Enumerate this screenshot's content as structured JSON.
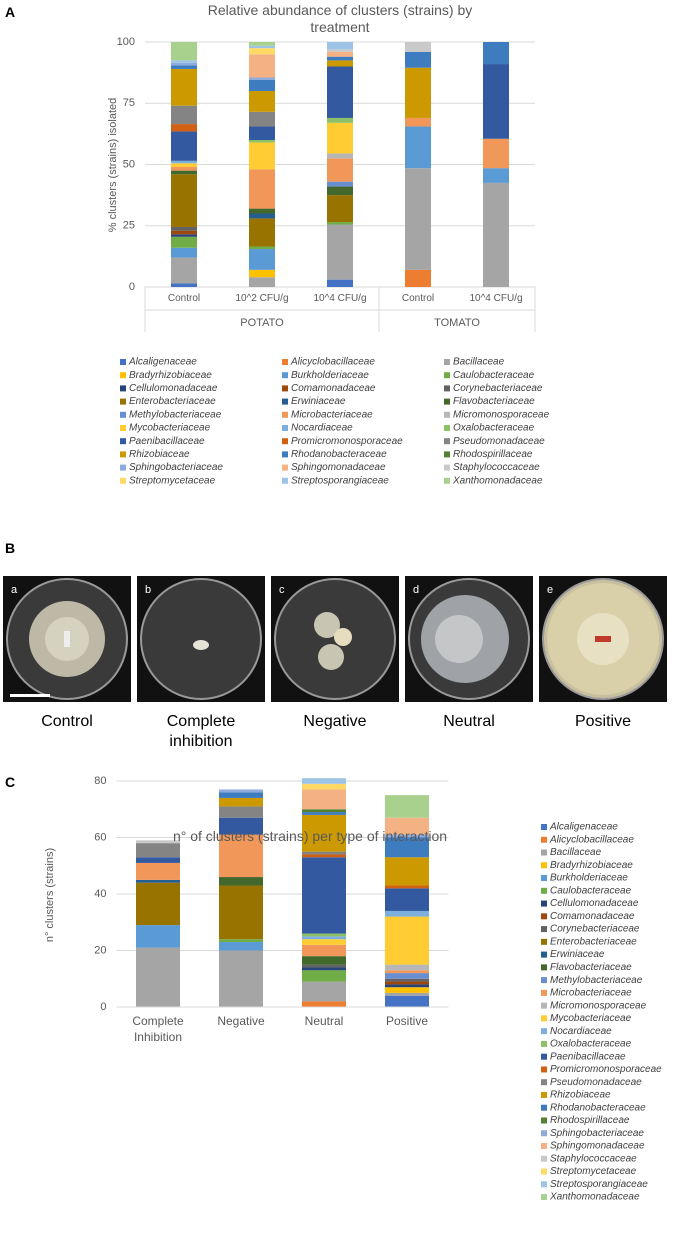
{
  "panel_labels": [
    "A",
    "B",
    "C"
  ],
  "chart_data": [
    {
      "type": "bar",
      "stacked": true,
      "grid": true,
      "legend": "bottom",
      "title": "Relative abundance of clusters (strains) by treatment",
      "y_label": "% clusters (strains) isolated",
      "groups": [
        {
          "name": "POTATO",
          "categories": [
            "Control",
            "10^2 CFU/g",
            "10^4 CFU/g"
          ]
        },
        {
          "name": "TOMATO",
          "categories": [
            "Control",
            "10^4 CFU/g"
          ]
        }
      ],
      "ylim": [
        0,
        100
      ],
      "yticks": [
        0,
        25,
        50,
        75,
        100
      ],
      "series": [
        {
          "name": "Alcaligenaceae",
          "color": "#4472c4",
          "values": [
            1.5,
            0,
            3,
            0,
            0
          ]
        },
        {
          "name": "Alicyclobacillaceae",
          "color": "#ed7d31",
          "values": [
            0,
            0,
            0,
            7,
            0
          ]
        },
        {
          "name": "Bacillaceae",
          "color": "#a5a5a5",
          "values": [
            10.5,
            4,
            22.5,
            41.5,
            42.5
          ]
        },
        {
          "name": "Bradyrhizobiaceae",
          "color": "#ffc000",
          "values": [
            0,
            3,
            0,
            0,
            0
          ]
        },
        {
          "name": "Burkholderiaceae",
          "color": "#5b9bd5",
          "values": [
            4,
            8.5,
            0,
            17,
            6
          ]
        },
        {
          "name": "Caulobacteraceae",
          "color": "#70ad47",
          "values": [
            4.5,
            1,
            1,
            0,
            0
          ]
        },
        {
          "name": "Cellulomonadaceae",
          "color": "#264478",
          "values": [
            1,
            0,
            0,
            0,
            0
          ]
        },
        {
          "name": "Comamonadaceae",
          "color": "#9e480e",
          "values": [
            1.5,
            0,
            0,
            0,
            0
          ]
        },
        {
          "name": "Corynebacteriaceae",
          "color": "#636363",
          "values": [
            1.5,
            0,
            0,
            0,
            0
          ]
        },
        {
          "name": "Enterobacteriaceae",
          "color": "#997300",
          "values": [
            21.5,
            11.5,
            11,
            0,
            0
          ]
        },
        {
          "name": "Erwiniaceae",
          "color": "#255e91",
          "values": [
            0,
            2,
            0,
            0,
            0
          ]
        },
        {
          "name": "Flavobacteriaceae",
          "color": "#43682b",
          "values": [
            1.5,
            2,
            3.5,
            0,
            0
          ]
        },
        {
          "name": "Methylobacteriaceae",
          "color": "#698ed0",
          "values": [
            0,
            0,
            2,
            0,
            0
          ]
        },
        {
          "name": "Microbacteriaceae",
          "color": "#f1975a",
          "values": [
            1.5,
            16,
            9.5,
            3.5,
            12
          ]
        },
        {
          "name": "Micromonosporaceae",
          "color": "#b7b7b7",
          "values": [
            0,
            0,
            2,
            0,
            0
          ]
        },
        {
          "name": "Mycobacteriaceae",
          "color": "#ffcd33",
          "values": [
            1.5,
            11,
            12.5,
            0,
            0
          ]
        },
        {
          "name": "Nocardiaceae",
          "color": "#7cafdd",
          "values": [
            1,
            0,
            0,
            0,
            0
          ]
        },
        {
          "name": "Oxalobacteraceae",
          "color": "#8cc168",
          "values": [
            0,
            1,
            2,
            0,
            0
          ]
        },
        {
          "name": "Paenibacillaceae",
          "color": "#335aa1",
          "values": [
            12,
            5.5,
            21,
            0,
            30.5
          ]
        },
        {
          "name": "Promicromonosporaceae",
          "color": "#d26012",
          "values": [
            3,
            0,
            0,
            0,
            0
          ]
        },
        {
          "name": "Pseudomonadaceae",
          "color": "#848484",
          "values": [
            7.5,
            6,
            0,
            0,
            0
          ]
        },
        {
          "name": "Rhizobiaceae",
          "color": "#cc9a00",
          "values": [
            15,
            8.5,
            2.5,
            20.5,
            0
          ]
        },
        {
          "name": "Rhodanobacteraceae",
          "color": "#3d7cbf",
          "values": [
            1.5,
            4.5,
            1.5,
            6.5,
            9
          ]
        },
        {
          "name": "Rhodospirillaceae",
          "color": "#548235",
          "values": [
            0,
            0,
            0,
            0,
            0
          ]
        },
        {
          "name": "Sphingobacteriaceae",
          "color": "#8faadc",
          "values": [
            1,
            1,
            0,
            0,
            0
          ]
        },
        {
          "name": "Sphingomonadaceae",
          "color": "#f4b183",
          "values": [
            0,
            9.5,
            2,
            0,
            0
          ]
        },
        {
          "name": "Staphylococcaceae",
          "color": "#c9c9c9",
          "values": [
            0,
            0,
            1,
            4,
            0
          ]
        },
        {
          "name": "Streptomycetaceae",
          "color": "#ffd966",
          "values": [
            0,
            2.5,
            0,
            0,
            0
          ]
        },
        {
          "name": "Streptosporangiaceae",
          "color": "#9dc3e6",
          "values": [
            1,
            1,
            3,
            0,
            0
          ]
        },
        {
          "name": "Xanthomonadaceae",
          "color": "#a9d18e",
          "values": [
            7.5,
            1.5,
            0,
            0,
            0
          ]
        }
      ]
    },
    {
      "type": "bar",
      "stacked": true,
      "grid": true,
      "legend": "right",
      "title": "n° of clusters (strains) per type of interaction",
      "y_label": "n° clusters (strains)",
      "categories": [
        "Complete Inhibition",
        "Negative",
        "Neutral",
        "Positive"
      ],
      "ylim": [
        0,
        80
      ],
      "yticks": [
        0,
        20,
        40,
        60,
        80
      ],
      "series": [
        {
          "name": "Alcaligenaceae",
          "color": "#4472c4",
          "values": [
            0,
            0,
            0,
            4
          ]
        },
        {
          "name": "Alicyclobacillaceae",
          "color": "#ed7d31",
          "values": [
            0,
            0,
            2,
            0
          ]
        },
        {
          "name": "Bacillaceae",
          "color": "#a5a5a5",
          "values": [
            21,
            20,
            7,
            1
          ]
        },
        {
          "name": "Bradyrhizobiaceae",
          "color": "#ffc000",
          "values": [
            0,
            0,
            0,
            2
          ]
        },
        {
          "name": "Burkholderiaceae",
          "color": "#5b9bd5",
          "values": [
            8,
            3,
            0,
            0
          ]
        },
        {
          "name": "Caulobacteraceae",
          "color": "#70ad47",
          "values": [
            0,
            1,
            4,
            0
          ]
        },
        {
          "name": "Cellulomonadaceae",
          "color": "#264478",
          "values": [
            0,
            0,
            1,
            1
          ]
        },
        {
          "name": "Comamonadaceae",
          "color": "#9e480e",
          "values": [
            0,
            0,
            0,
            1
          ]
        },
        {
          "name": "Corynebacteriaceae",
          "color": "#636363",
          "values": [
            0,
            0,
            1,
            1
          ]
        },
        {
          "name": "Enterobacteriaceae",
          "color": "#997300",
          "values": [
            15,
            19,
            0,
            0
          ]
        },
        {
          "name": "Erwiniaceae",
          "color": "#255e91",
          "values": [
            1,
            0,
            0,
            0
          ]
        },
        {
          "name": "Flavobacteriaceae",
          "color": "#43682b",
          "values": [
            0,
            3,
            3,
            0
          ]
        },
        {
          "name": "Methylobacteriaceae",
          "color": "#698ed0",
          "values": [
            0,
            0,
            0,
            2
          ]
        },
        {
          "name": "Microbacteriaceae",
          "color": "#f1975a",
          "values": [
            6,
            15,
            4,
            1
          ]
        },
        {
          "name": "Micromonosporaceae",
          "color": "#b7b7b7",
          "values": [
            0,
            0,
            0,
            2
          ]
        },
        {
          "name": "Mycobacteriaceae",
          "color": "#ffcd33",
          "values": [
            0,
            0,
            2,
            17
          ]
        },
        {
          "name": "Nocardiaceae",
          "color": "#7cafdd",
          "values": [
            0,
            0,
            1,
            2
          ]
        },
        {
          "name": "Oxalobacteraceae",
          "color": "#8cc168",
          "values": [
            0,
            0,
            1,
            0
          ]
        },
        {
          "name": "Paenibacillaceae",
          "color": "#335aa1",
          "values": [
            2,
            6,
            27,
            8
          ]
        },
        {
          "name": "Promicromonosporaceae",
          "color": "#d26012",
          "values": [
            0,
            0,
            1,
            1
          ]
        },
        {
          "name": "Pseudomonadaceae",
          "color": "#848484",
          "values": [
            5,
            4,
            1,
            0
          ]
        },
        {
          "name": "Rhizobiaceae",
          "color": "#cc9a00",
          "values": [
            0,
            3,
            13,
            10
          ]
        },
        {
          "name": "Rhodanobacteraceae",
          "color": "#3d7cbf",
          "values": [
            0,
            2,
            1,
            7
          ]
        },
        {
          "name": "Rhodospirillaceae",
          "color": "#548235",
          "values": [
            0,
            0,
            1,
            0
          ]
        },
        {
          "name": "Sphingobacteriaceae",
          "color": "#8faadc",
          "values": [
            0,
            1,
            0,
            1
          ]
        },
        {
          "name": "Sphingomonadaceae",
          "color": "#f4b183",
          "values": [
            0,
            0,
            7,
            6
          ]
        },
        {
          "name": "Staphylococcaceae",
          "color": "#c9c9c9",
          "values": [
            1,
            0,
            0,
            0
          ]
        },
        {
          "name": "Streptomycetaceae",
          "color": "#ffd966",
          "values": [
            0,
            0,
            2,
            0
          ]
        },
        {
          "name": "Streptosporangiaceae",
          "color": "#9dc3e6",
          "values": [
            0,
            0,
            2,
            0
          ]
        },
        {
          "name": "Xanthomonadaceae",
          "color": "#a9d18e",
          "values": [
            0,
            0,
            0,
            8
          ]
        }
      ]
    }
  ],
  "photo_panel": {
    "items": [
      {
        "letter": "a",
        "caption": "Control"
      },
      {
        "letter": "b",
        "caption": "Complete inhibition"
      },
      {
        "letter": "c",
        "caption": "Negative"
      },
      {
        "letter": "d",
        "caption": "Neutral"
      },
      {
        "letter": "e",
        "caption": "Positive"
      }
    ]
  }
}
